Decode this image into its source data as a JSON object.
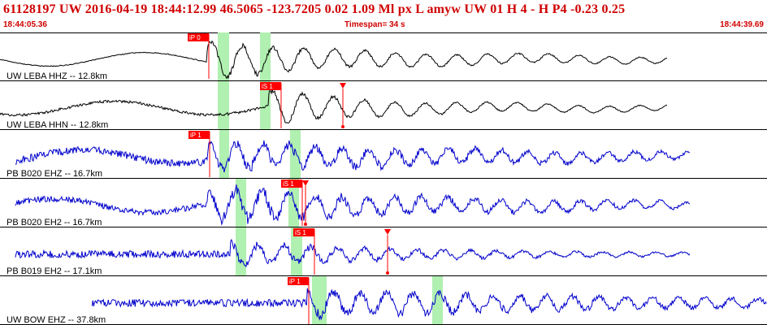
{
  "header": {
    "title": "61128197 UW 2016-04-19 18:44:12.99   46.5065 -123.7205   0.02  1.09 Ml  px  L amyw     UW 01  H   4  -  H P4   -0.23  0.25",
    "start_time": "18:44:05.36",
    "timespan": "Timespan=  34 s",
    "end_time": "18:44:39.69"
  },
  "colors": {
    "header_text": "#d00000",
    "trace_black": "#000000",
    "trace_blue": "#0000cc",
    "pick": "#ff0000",
    "highlight": "#b0f0b0"
  },
  "traces": [
    {
      "label": "UW LEBA HHZ -- 12.8km",
      "color": "black",
      "picks": [
        {
          "label": "iP 0"
        }
      ],
      "shape": {
        "start": 0.0,
        "end": 0.87,
        "onset": 0.27,
        "pre_amp": 0.12,
        "post_amp": 0.85,
        "decay": 0.25,
        "lowfreq": 1,
        "freq": 1
      }
    },
    {
      "label": "UW LEBA HHN -- 12.8km",
      "color": "black",
      "picks": [
        {
          "label": "iS 1"
        },
        {
          "label": "",
          "marker": true
        }
      ],
      "shape": {
        "start": 0.0,
        "end": 0.87,
        "onset": 0.35,
        "pre_amp": 0.35,
        "post_amp": 0.8,
        "decay": 0.2,
        "lowfreq": 1,
        "freq": 1
      }
    },
    {
      "label": "PB B020 EHZ -- 16.7km",
      "color": "blue",
      "picks": [
        {
          "label": "iP 1"
        }
      ],
      "shape": {
        "start": 0.02,
        "end": 0.9,
        "onset": 0.27,
        "pre_amp": 0.15,
        "post_amp": 0.6,
        "decay": 0.6,
        "lowfreq": 1,
        "freq": 0
      }
    },
    {
      "label": "PB B020 EH2 -- 16.7km",
      "color": "blue",
      "picks": [
        {
          "label": "iS 1"
        },
        {
          "label": "",
          "marker": true
        }
      ],
      "shape": {
        "start": 0.02,
        "end": 0.9,
        "onset": 0.27,
        "pre_amp": 0.12,
        "post_amp": 0.75,
        "decay": 0.4,
        "lowfreq": 1,
        "freq": 0
      }
    },
    {
      "label": "PB B019 EH2 -- 17.1km",
      "color": "blue",
      "picks": [
        {
          "label": "iS 1"
        },
        {
          "label": "",
          "marker": true
        }
      ],
      "shape": {
        "start": 0.02,
        "end": 0.9,
        "onset": 0.3,
        "pre_amp": 0.15,
        "post_amp": 0.5,
        "decay": 0.3,
        "lowfreq": 0,
        "freq": 0
      }
    },
    {
      "label": "UW BOW EHZ -- 37.8km",
      "color": "blue",
      "picks": [
        {
          "label": "iP 1"
        }
      ],
      "shape": {
        "start": 0.12,
        "end": 1.0,
        "onset": 0.4,
        "pre_amp": 0.15,
        "post_amp": 0.55,
        "decay": 0.8,
        "lowfreq": 0,
        "freq": 0
      }
    }
  ]
}
